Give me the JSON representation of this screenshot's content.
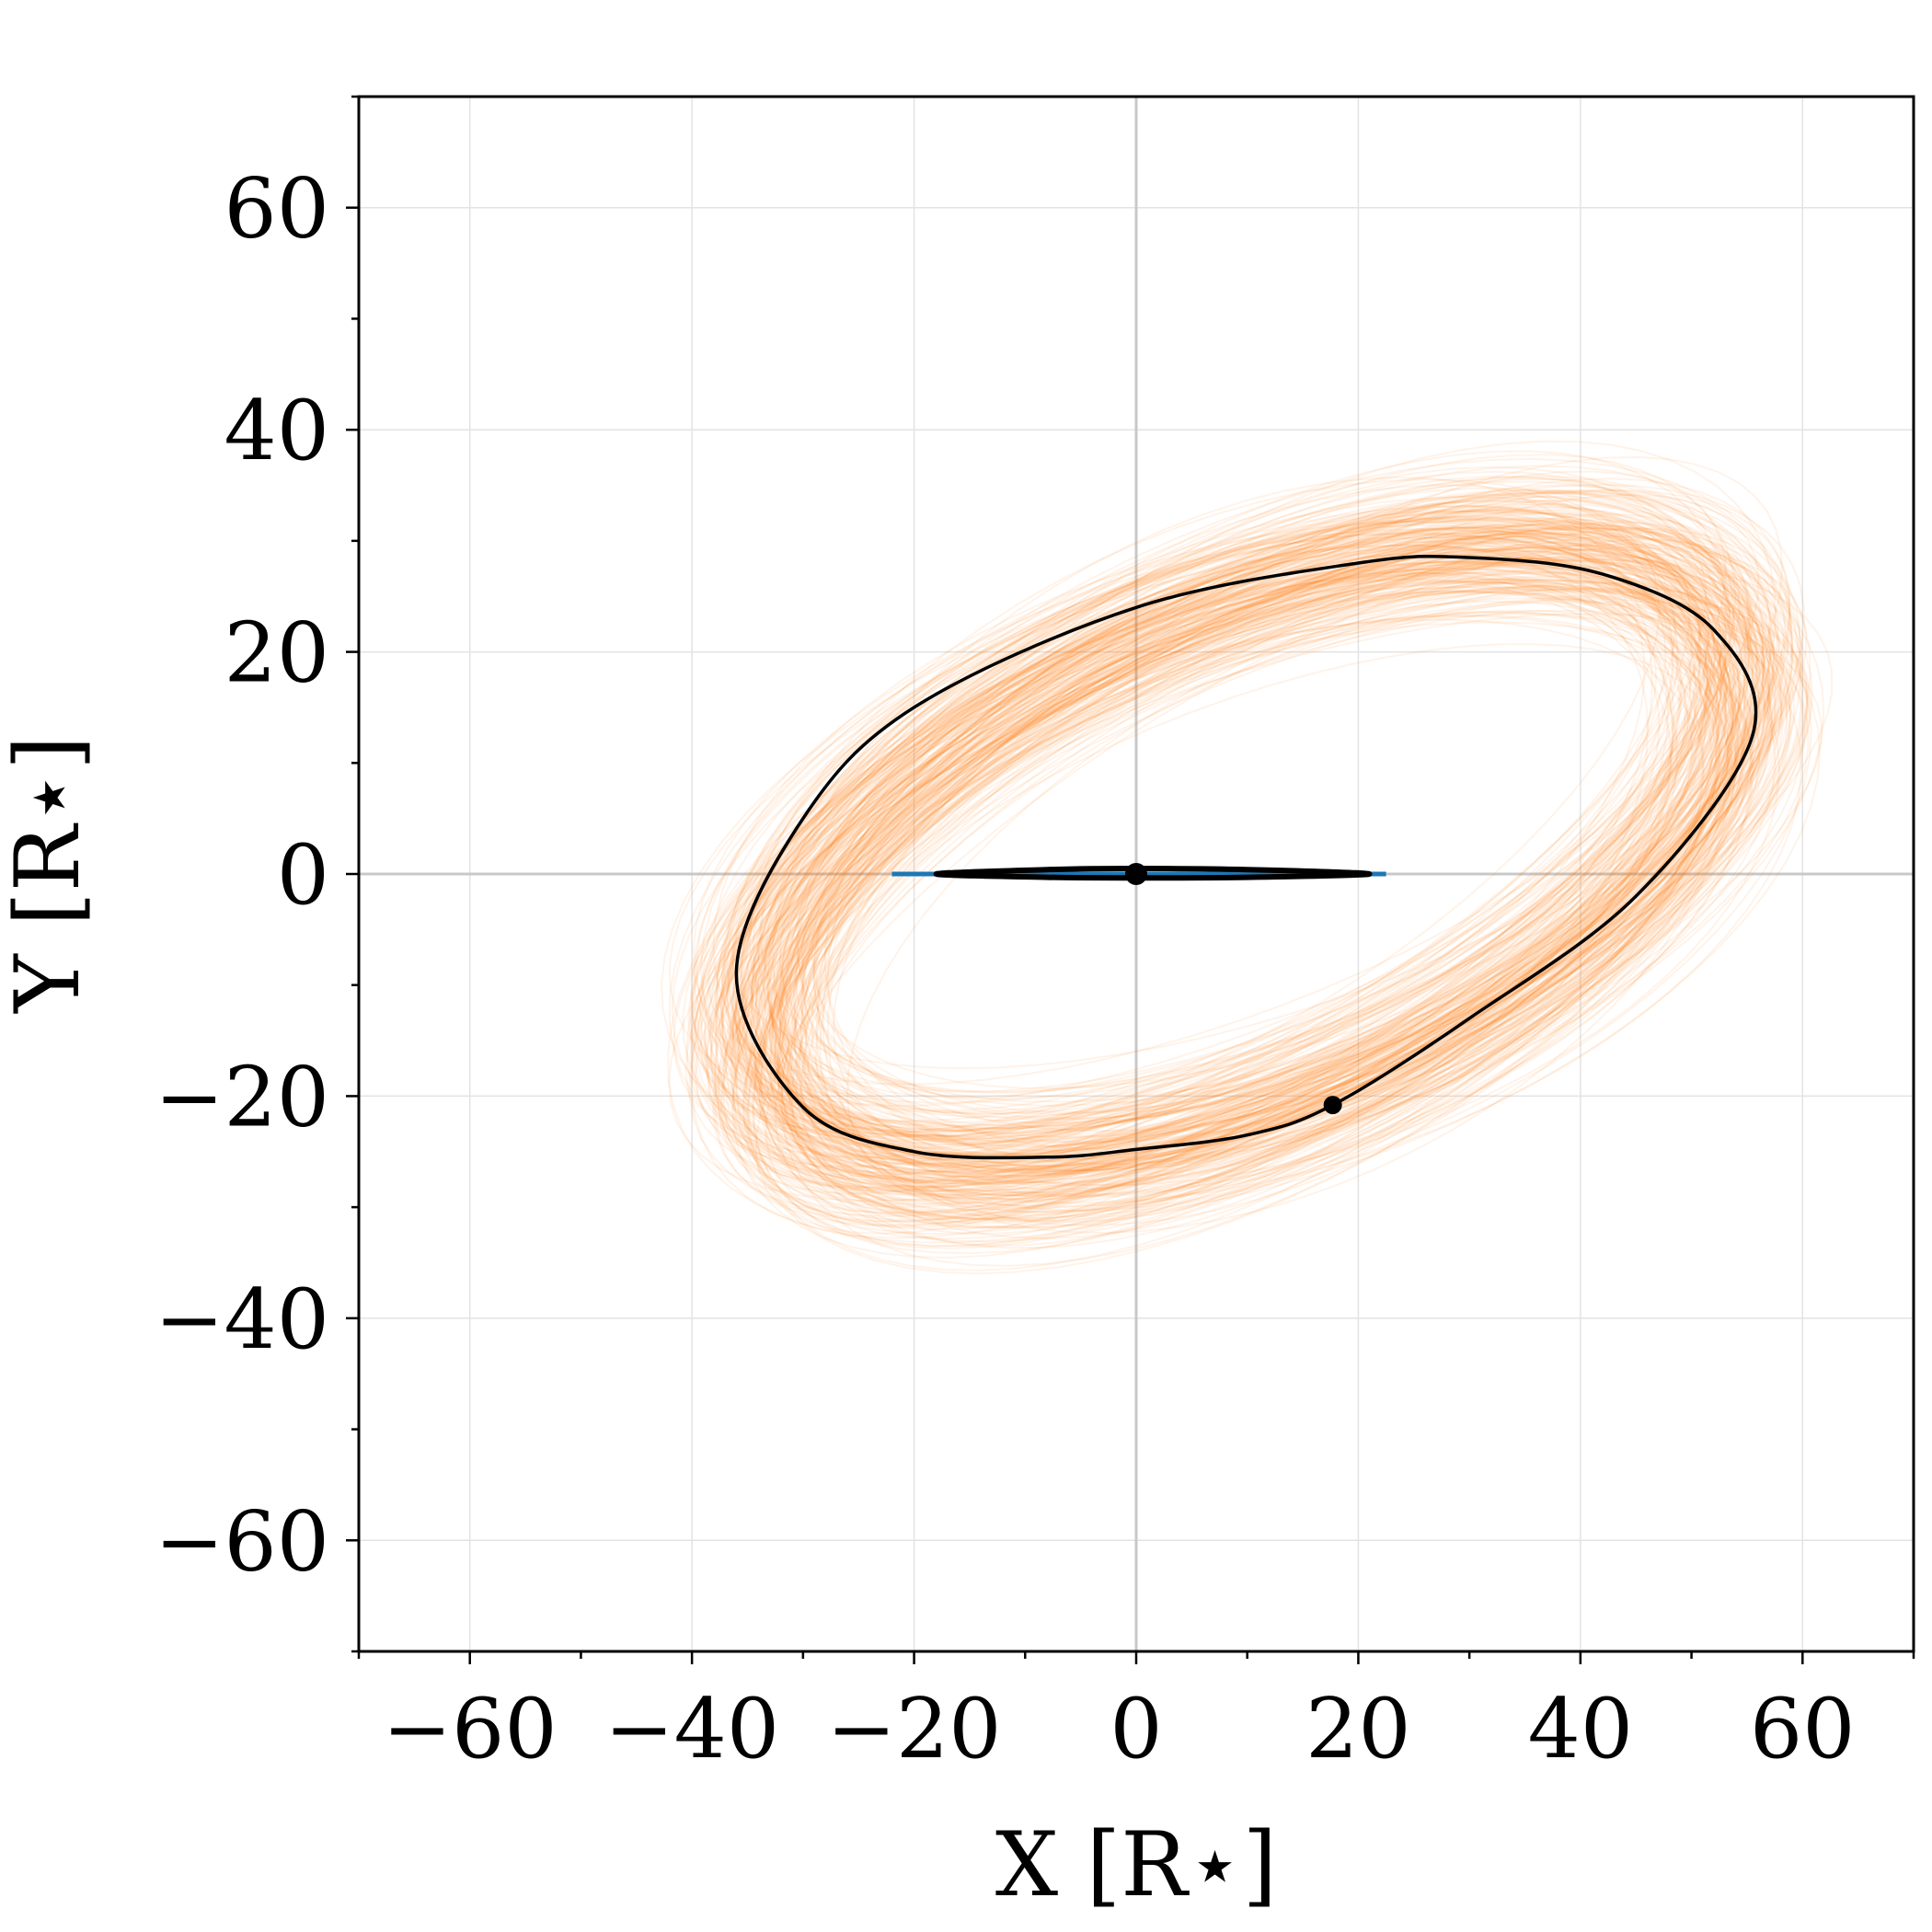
{
  "chart_data": {
    "type": "scatter",
    "title": "",
    "xlabel": "X [R⋆]",
    "ylabel": "Y [R⋆]",
    "xlim": [
      -70,
      70
    ],
    "ylim": [
      -70,
      70
    ],
    "xticks": [
      "−60",
      "−40",
      "−20",
      "0",
      "20",
      "40",
      "60"
    ],
    "yticks": [
      "−60",
      "−40",
      "−20",
      "0",
      "20",
      "40",
      "60"
    ],
    "grid": true,
    "colors": {
      "posterior_orbits": "#ff7f0e",
      "inner_orbits": "#1f77b4",
      "best_fit": "#000000"
    },
    "series": [
      {
        "kind": "posterior-orbit-samples",
        "color": "#ff7f0e",
        "orbit_center": [
          9.8,
          1.5
        ],
        "semi_major_axis": 48,
        "semi_minor_axis": 22,
        "tilt_deg": 25
      },
      {
        "kind": "best-fit-outer-orbit",
        "color": "#000000",
        "points": [
          [
            -36,
            -9
          ],
          [
            -30,
            -21
          ],
          [
            -20,
            -25
          ],
          [
            -8,
            -25.5
          ],
          [
            0,
            -24.8
          ],
          [
            10,
            -23.5
          ],
          [
            17.7,
            -20.8
          ],
          [
            30,
            -13
          ],
          [
            45,
            -2
          ],
          [
            55.5,
            12.5
          ],
          [
            52,
            22
          ],
          [
            42,
            27
          ],
          [
            30,
            28.5
          ],
          [
            20,
            28
          ],
          [
            0,
            24
          ],
          [
            -20,
            15
          ],
          [
            -30,
            5
          ],
          [
            -36,
            -9
          ]
        ]
      },
      {
        "kind": "inner-orbit",
        "color": "#000000",
        "points": [
          [
            -18,
            0
          ],
          [
            -8,
            0.4
          ],
          [
            0,
            0.5
          ],
          [
            10,
            0.4
          ],
          [
            21,
            0
          ],
          [
            10,
            -0.3
          ],
          [
            0,
            -0.35
          ],
          [
            -8,
            -0.3
          ],
          [
            -18,
            0
          ]
        ]
      }
    ],
    "points": [
      {
        "name": "central-star",
        "x": 0,
        "y": 0
      },
      {
        "name": "companion-position",
        "x": 17.7,
        "y": -20.8
      }
    ]
  }
}
